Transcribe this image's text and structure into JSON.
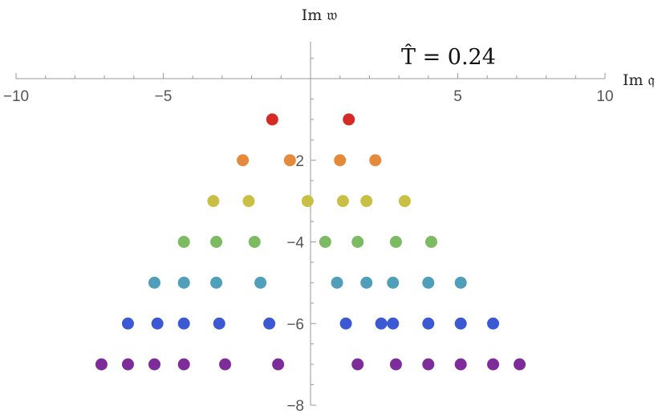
{
  "chart_data": {
    "type": "scatter",
    "title": "",
    "xlabel": "Im 𝔮",
    "ylabel": "Im 𝔴",
    "annotation": "T̂ = 0.24",
    "xlim": [
      -10,
      10
    ],
    "ylim": [
      -8,
      0.9
    ],
    "grid": false,
    "legend": "none",
    "x_ticks": [
      -10,
      -5,
      5,
      10
    ],
    "x_tick_labels": [
      "−10",
      "−5",
      "5",
      "10"
    ],
    "y_ticks": [
      -2,
      -4,
      -6,
      -8
    ],
    "y_tick_labels": [
      "−2",
      "−4",
      "−6",
      "−8"
    ],
    "colors": [
      "#d62a26",
      "#e58a3a",
      "#c9bf45",
      "#7dbb62",
      "#4f9fbb",
      "#3c58d3",
      "#7e2c9a"
    ],
    "series": [
      {
        "color": "#d62a26",
        "points": [
          [
            -1.3,
            -1
          ],
          [
            1.3,
            -1
          ]
        ]
      },
      {
        "color": "#e58a3a",
        "points": [
          [
            -2.3,
            -2
          ],
          [
            -0.7,
            -2
          ],
          [
            1.0,
            -2
          ],
          [
            2.2,
            -2
          ]
        ]
      },
      {
        "color": "#c9bf45",
        "points": [
          [
            -3.3,
            -3
          ],
          [
            -2.1,
            -3
          ],
          [
            -0.1,
            -3
          ],
          [
            1.1,
            -3
          ],
          [
            1.9,
            -3
          ],
          [
            3.2,
            -3
          ]
        ]
      },
      {
        "color": "#7dbb62",
        "points": [
          [
            -4.3,
            -4
          ],
          [
            -3.2,
            -4
          ],
          [
            -1.9,
            -4
          ],
          [
            0.5,
            -4
          ],
          [
            1.6,
            -4
          ],
          [
            2.9,
            -4
          ],
          [
            4.1,
            -4
          ]
        ]
      },
      {
        "color": "#4f9fbb",
        "points": [
          [
            -5.3,
            -5
          ],
          [
            -4.3,
            -5
          ],
          [
            -3.2,
            -5
          ],
          [
            -1.7,
            -5
          ],
          [
            0.9,
            -5
          ],
          [
            1.9,
            -5
          ],
          [
            2.8,
            -5
          ],
          [
            4.0,
            -5
          ],
          [
            5.1,
            -5
          ]
        ]
      },
      {
        "color": "#3c58d3",
        "points": [
          [
            -6.2,
            -6
          ],
          [
            -5.2,
            -6
          ],
          [
            -4.3,
            -6
          ],
          [
            -3.1,
            -6
          ],
          [
            -1.4,
            -6
          ],
          [
            1.2,
            -6
          ],
          [
            2.4,
            -6
          ],
          [
            2.8,
            -6
          ],
          [
            4.0,
            -6
          ],
          [
            5.1,
            -6
          ],
          [
            6.2,
            -6
          ]
        ]
      },
      {
        "color": "#7e2c9a",
        "points": [
          [
            -7.1,
            -7
          ],
          [
            -6.2,
            -7
          ],
          [
            -5.3,
            -7
          ],
          [
            -4.3,
            -7
          ],
          [
            -2.9,
            -7
          ],
          [
            -1.1,
            -7
          ],
          [
            1.6,
            -7
          ],
          [
            2.9,
            -7
          ],
          [
            4.0,
            -7
          ],
          [
            5.1,
            -7
          ],
          [
            6.2,
            -7
          ],
          [
            7.1,
            -7
          ]
        ]
      }
    ]
  }
}
